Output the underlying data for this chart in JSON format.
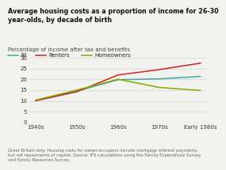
{
  "title": "Average housing costs as a proportion of income for 26-30\nyear-olds, by decade of birth",
  "subtitle": "Percentage of income after tax and benefits",
  "x_labels": [
    "1940s",
    "1950s",
    "1960s",
    "1970s",
    "Early 1980s"
  ],
  "x_positions": [
    0,
    1,
    2,
    3,
    4
  ],
  "series": [
    {
      "name": "All",
      "color": "#3aaba0",
      "values": [
        10.2,
        14.5,
        19.8,
        20.2,
        21.3
      ]
    },
    {
      "name": "Renters",
      "color": "#cc2222",
      "values": [
        10.0,
        14.2,
        22.0,
        24.5,
        27.5
      ]
    },
    {
      "name": "Homeowners",
      "color": "#88aa00",
      "values": [
        10.3,
        15.0,
        20.0,
        16.2,
        14.8
      ]
    }
  ],
  "ylim": [
    0,
    30
  ],
  "yticks": [
    0,
    5,
    10,
    15,
    20,
    25,
    30
  ],
  "background_color": "#f2f2ee",
  "grid_color": "#d8d8d8",
  "footnote": "Great Britain only. Housing costs for owner-occupiers include mortgage interest payments,\nbut not repayments of capital. Source: IFS calculations using the Family Expenditure Survey\nand Family Resources Survey.",
  "title_fontsize": 5.8,
  "subtitle_fontsize": 5.0,
  "legend_fontsize": 5.0,
  "axis_fontsize": 5.0,
  "footnote_fontsize": 3.8,
  "title_color": "#111111",
  "axis_label_color": "#333333",
  "footnote_color": "#666666"
}
